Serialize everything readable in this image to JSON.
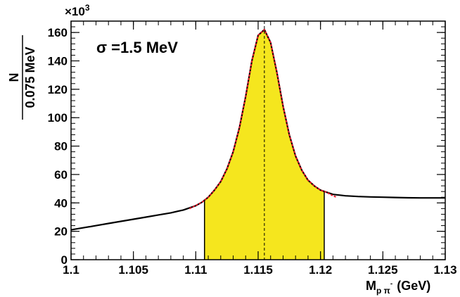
{
  "chart_data": {
    "type": "line",
    "title": "",
    "annotation": "σ =1.5 MeV",
    "ylabel_numerator": "N",
    "ylabel_denominator": "0.075 MeV",
    "y_exponent_label": "×10",
    "y_exponent_power": "3",
    "xlabel_prefix": "M",
    "xlabel_sub": "p π",
    "xlabel_sup": "-",
    "xlabel_unit": "(GeV)",
    "xlim": [
      1.1,
      1.13
    ],
    "ylim": [
      0,
      168
    ],
    "x_ticks": [
      "1.1",
      "1.105",
      "1.11",
      "1.115",
      "1.12",
      "1.125",
      "1.13"
    ],
    "x_tick_values": [
      1.1,
      1.105,
      1.11,
      1.115,
      1.12,
      1.125,
      1.13
    ],
    "y_ticks": [
      "0",
      "20",
      "40",
      "60",
      "80",
      "100",
      "120",
      "140",
      "160"
    ],
    "y_tick_values": [
      0,
      20,
      40,
      60,
      80,
      100,
      120,
      140,
      160
    ],
    "peak_marker_x": 1.1155,
    "shaded_region": {
      "x_start": 1.1107,
      "x_end": 1.1203,
      "color": "#f5e61e"
    },
    "series": [
      {
        "kind": "data",
        "color": "#000000",
        "x": [
          1.1,
          1.101,
          1.102,
          1.103,
          1.104,
          1.105,
          1.106,
          1.107,
          1.108,
          1.109,
          1.11,
          1.1105,
          1.111,
          1.1115,
          1.112,
          1.1125,
          1.113,
          1.1135,
          1.114,
          1.1145,
          1.115,
          1.1155,
          1.116,
          1.1165,
          1.117,
          1.1175,
          1.118,
          1.1185,
          1.119,
          1.1195,
          1.12,
          1.1205,
          1.121,
          1.122,
          1.123,
          1.124,
          1.125,
          1.126,
          1.127,
          1.128,
          1.129,
          1.13
        ],
        "y": [
          21,
          22.5,
          24,
          25.5,
          27,
          28.5,
          30,
          31.5,
          33,
          35,
          38,
          40.5,
          44,
          49,
          55,
          64,
          76,
          93,
          115,
          140,
          158,
          162,
          153,
          132,
          108,
          88,
          73,
          63,
          56,
          52,
          49,
          47.5,
          46,
          45,
          44.5,
          44.2,
          44,
          43.8,
          43.6,
          43.5,
          43.5,
          43.5
        ]
      },
      {
        "kind": "fit",
        "color": "#e8182c",
        "x": [
          1.1095,
          1.1105,
          1.111,
          1.1115,
          1.112,
          1.1125,
          1.113,
          1.1135,
          1.114,
          1.1145,
          1.115,
          1.1155,
          1.116,
          1.1165,
          1.117,
          1.1175,
          1.118,
          1.1185,
          1.119,
          1.1195,
          1.12,
          1.1205,
          1.121,
          1.1213
        ],
        "y": [
          36,
          40.5,
          44,
          49,
          55,
          64,
          76,
          93,
          115,
          140,
          158,
          162,
          153,
          132,
          108,
          88,
          73,
          63,
          56,
          52,
          49,
          47.5,
          45,
          44
        ]
      }
    ]
  }
}
